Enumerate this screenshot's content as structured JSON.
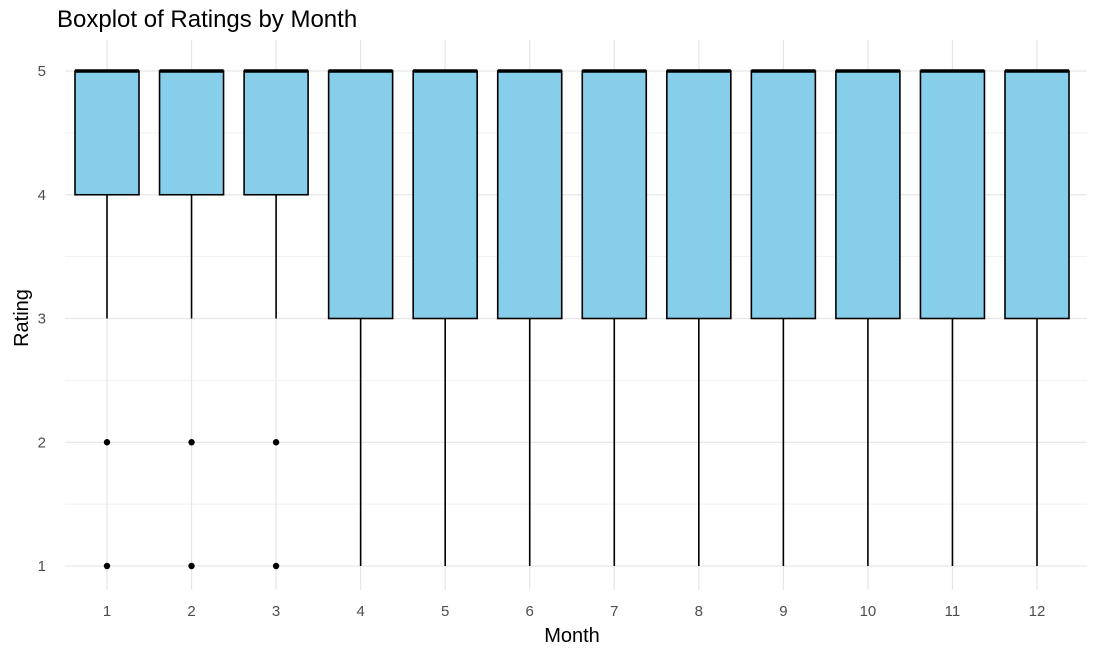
{
  "chart_data": {
    "type": "boxplot",
    "title": "Boxplot of Ratings by Month",
    "xlabel": "Month",
    "ylabel": "Rating",
    "categories": [
      "1",
      "2",
      "3",
      "4",
      "5",
      "6",
      "7",
      "8",
      "9",
      "10",
      "11",
      "12"
    ],
    "y_ticks": [
      "1",
      "2",
      "3",
      "4",
      "5"
    ],
    "ylim": [
      1,
      5
    ],
    "grid": true,
    "legend": "none",
    "fill_color": "#87CEEB",
    "outline_color": "#000000",
    "boxes": [
      {
        "category": "1",
        "min": 3,
        "q1": 4,
        "median": 5,
        "q3": 5,
        "max": 5,
        "outliers": [
          1,
          2
        ]
      },
      {
        "category": "2",
        "min": 3,
        "q1": 4,
        "median": 5,
        "q3": 5,
        "max": 5,
        "outliers": [
          1,
          2
        ]
      },
      {
        "category": "3",
        "min": 3,
        "q1": 4,
        "median": 5,
        "q3": 5,
        "max": 5,
        "outliers": [
          1,
          2
        ]
      },
      {
        "category": "4",
        "min": 1,
        "q1": 3,
        "median": 5,
        "q3": 5,
        "max": 5,
        "outliers": []
      },
      {
        "category": "5",
        "min": 1,
        "q1": 3,
        "median": 5,
        "q3": 5,
        "max": 5,
        "outliers": []
      },
      {
        "category": "6",
        "min": 1,
        "q1": 3,
        "median": 5,
        "q3": 5,
        "max": 5,
        "outliers": []
      },
      {
        "category": "7",
        "min": 1,
        "q1": 3,
        "median": 5,
        "q3": 5,
        "max": 5,
        "outliers": []
      },
      {
        "category": "8",
        "min": 1,
        "q1": 3,
        "median": 5,
        "q3": 5,
        "max": 5,
        "outliers": []
      },
      {
        "category": "9",
        "min": 1,
        "q1": 3,
        "median": 5,
        "q3": 5,
        "max": 5,
        "outliers": []
      },
      {
        "category": "10",
        "min": 1,
        "q1": 3,
        "median": 5,
        "q3": 5,
        "max": 5,
        "outliers": []
      },
      {
        "category": "11",
        "min": 1,
        "q1": 3,
        "median": 5,
        "q3": 5,
        "max": 5,
        "outliers": []
      },
      {
        "category": "12",
        "min": 1,
        "q1": 3,
        "median": 5,
        "q3": 5,
        "max": 5,
        "outliers": []
      }
    ]
  }
}
